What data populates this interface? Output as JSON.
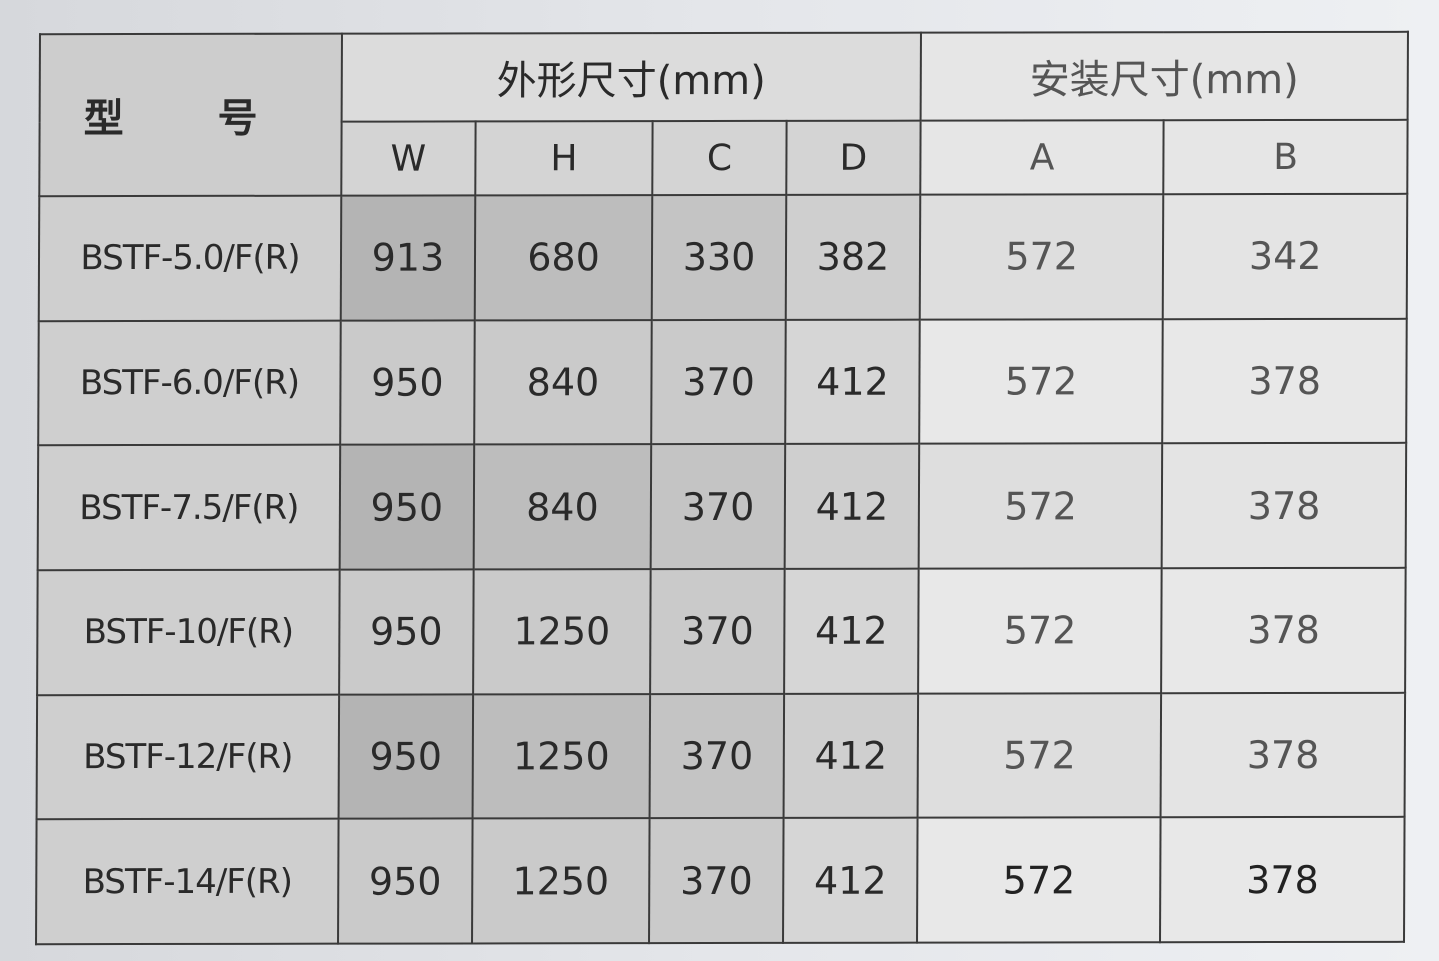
{
  "headers": {
    "model": "型 号",
    "outer_dimensions": "外形尺寸(mm)",
    "install_dimensions": "安装尺寸(mm)",
    "columns": [
      "W",
      "H",
      "C",
      "D",
      "A",
      "B"
    ]
  },
  "rows": [
    {
      "model": "BSTF-5.0/F(R)",
      "values": [
        "913",
        "680",
        "330",
        "382",
        "572",
        "342"
      ]
    },
    {
      "model": "BSTF-6.0/F(R)",
      "values": [
        "950",
        "840",
        "370",
        "412",
        "572",
        "378"
      ]
    },
    {
      "model": "BSTF-7.5/F(R)",
      "values": [
        "950",
        "840",
        "370",
        "412",
        "572",
        "378"
      ]
    },
    {
      "model": "BSTF-10/F(R)",
      "values": [
        "950",
        "1250",
        "370",
        "412",
        "572",
        "378"
      ]
    },
    {
      "model": "BSTF-12/F(R)",
      "values": [
        "950",
        "1250",
        "370",
        "412",
        "572",
        "378"
      ]
    },
    {
      "model": "BSTF-14/F(R)",
      "values": [
        "950",
        "1250",
        "370",
        "412",
        "572",
        "378"
      ]
    }
  ]
}
